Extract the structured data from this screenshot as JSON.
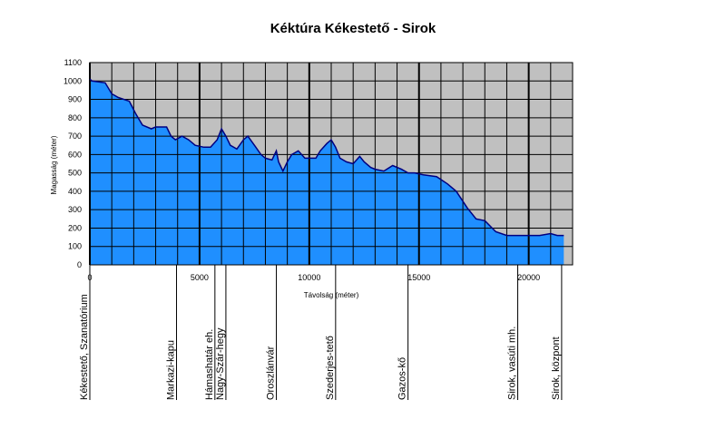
{
  "chart_data": {
    "type": "area",
    "title": "Kéktúra Kékestető - Sirok",
    "xlabel": "Távolság (méter)",
    "ylabel": "Magasság (méter)",
    "xlim": [
      0,
      22000
    ],
    "ylim": [
      0,
      1100
    ],
    "xticks": [
      0,
      5000,
      10000,
      15000,
      20000
    ],
    "xtick_labels": [
      "0",
      "5000",
      "10000",
      "15000",
      "20000"
    ],
    "yticks": [
      0,
      100,
      200,
      300,
      400,
      500,
      600,
      700,
      800,
      900,
      1000,
      1100
    ],
    "ytick_labels": [
      "0",
      "100",
      "200",
      "300",
      "400",
      "500",
      "600",
      "700",
      "800",
      "900",
      "1000",
      "1100"
    ],
    "grid": true,
    "colors": {
      "plot_bg": "#c0c0c0",
      "fill": "#1f8fff",
      "line": "#000080",
      "grid": "#000000"
    },
    "series": [
      {
        "x": [
          0,
          100,
          700,
          1000,
          1300,
          1800,
          2100,
          2400,
          2800,
          3000,
          3500,
          3700,
          3900,
          4200,
          4500,
          4800,
          5200,
          5500,
          5800,
          6000,
          6200,
          6400,
          6700,
          7000,
          7200,
          7500,
          7800,
          8000,
          8300,
          8500,
          8600,
          8800,
          9000,
          9200,
          9500,
          9800,
          10000,
          10300,
          10500,
          10800,
          11000,
          11200,
          11400,
          11700,
          12000,
          12300,
          12500,
          12800,
          13000,
          13400,
          13800,
          14200,
          14500,
          14800,
          15200,
          15800,
          16300,
          16700,
          17200,
          17600,
          18000,
          18500,
          19000,
          19500,
          20000,
          20500,
          21000,
          21300,
          21600
        ],
        "y": [
          1010,
          1000,
          990,
          930,
          910,
          890,
          820,
          760,
          740,
          750,
          750,
          700,
          680,
          700,
          680,
          650,
          640,
          640,
          680,
          740,
          700,
          650,
          630,
          680,
          700,
          650,
          600,
          580,
          570,
          620,
          560,
          510,
          560,
          600,
          620,
          580,
          580,
          580,
          620,
          660,
          680,
          640,
          580,
          560,
          550,
          590,
          560,
          530,
          520,
          510,
          540,
          520,
          500,
          500,
          490,
          480,
          440,
          400,
          310,
          250,
          240,
          180,
          160,
          160,
          160,
          160,
          170,
          160,
          160
        ]
      }
    ],
    "waypoints": [
      {
        "label": "Kékestető, Szanatórium",
        "x": 0
      },
      {
        "label": "Markazi-kapu",
        "x": 3950
      },
      {
        "label": "Hámashatár eh.",
        "x": 5700
      },
      {
        "label": "Nagy-Szár-hegy",
        "x": 6200
      },
      {
        "label": "Oroszlánvár",
        "x": 8500
      },
      {
        "label": "Szederjes-tető",
        "x": 11200
      },
      {
        "label": "Gazos-kő",
        "x": 14500
      },
      {
        "label": "Sirok, vasúti mh.",
        "x": 19500
      },
      {
        "label": "Sirok, központ",
        "x": 21500
      }
    ]
  }
}
